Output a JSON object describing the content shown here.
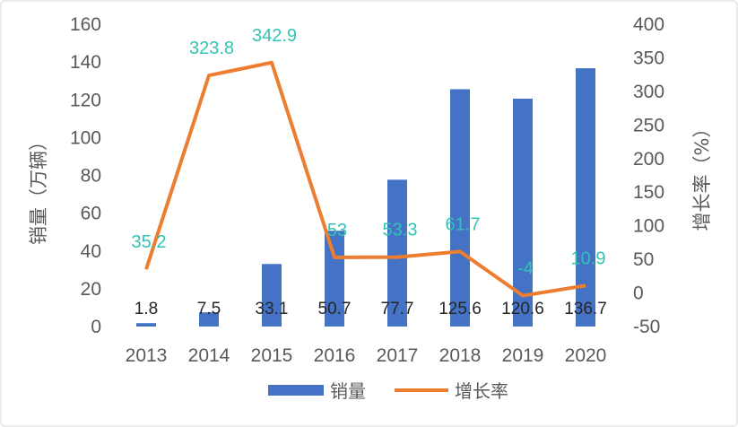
{
  "chart_data": {
    "type": "bar+line",
    "categories": [
      "2013",
      "2014",
      "2015",
      "2016",
      "2017",
      "2018",
      "2019",
      "2020"
    ],
    "series": [
      {
        "name": "销量",
        "type": "bar",
        "axis": "left",
        "color": "#4472C4",
        "values": [
          1.8,
          7.5,
          33.1,
          50.7,
          77.7,
          125.6,
          120.6,
          136.7
        ],
        "labels": [
          "1.8",
          "7.5",
          "33.1",
          "50.7",
          "77.7",
          "125.6",
          "120.6",
          "136.7"
        ]
      },
      {
        "name": "增长率",
        "type": "line",
        "axis": "right",
        "color": "#ED7D31",
        "values": [
          35.2,
          323.8,
          342.9,
          53,
          53.3,
          61.7,
          -4,
          10.9
        ],
        "labels": [
          "35.2",
          "323.8",
          "342.9",
          "53",
          "53.3",
          "61.7",
          "-4",
          "10.9"
        ]
      }
    ],
    "ylabel": "销量（万辆）",
    "y2label": "增长率（%）",
    "ylim": [
      0,
      160
    ],
    "yticks": [
      "0",
      "20",
      "40",
      "60",
      "80",
      "100",
      "120",
      "140",
      "160"
    ],
    "y2lim": [
      -50,
      400
    ],
    "y2ticks": [
      "-50",
      "0",
      "50",
      "100",
      "150",
      "200",
      "250",
      "300",
      "350",
      "400"
    ],
    "line_label_color": "#33C3B4",
    "grid": false,
    "legend": "bottom"
  }
}
